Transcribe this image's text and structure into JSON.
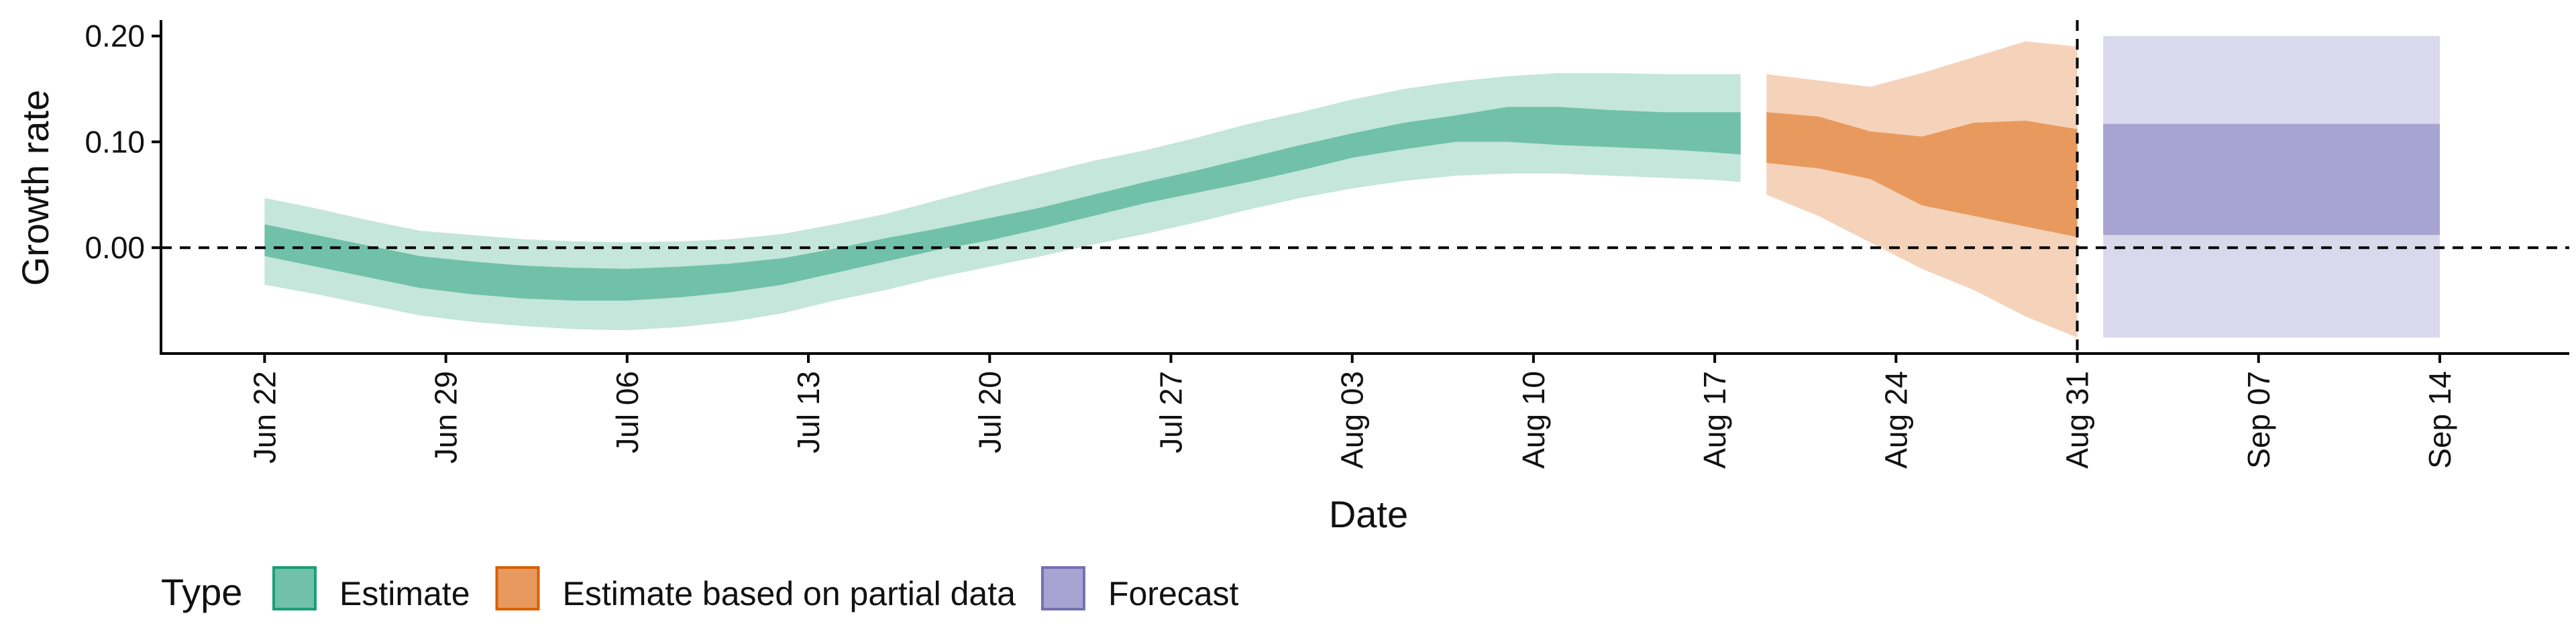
{
  "chart_data": {
    "type": "area",
    "xlabel": "Date",
    "ylabel": "Growth rate",
    "x_range": [
      "2020-06-18",
      "2020-09-19"
    ],
    "ylim": [
      -0.1,
      0.215
    ],
    "y_ticks": [
      {
        "value": 0.0,
        "label": "0.00"
      },
      {
        "value": 0.1,
        "label": "0.10"
      },
      {
        "value": 0.2,
        "label": "0.20"
      }
    ],
    "x_ticks": [
      {
        "date": "2020-06-22",
        "label": "Jun 22"
      },
      {
        "date": "2020-06-29",
        "label": "Jun 29"
      },
      {
        "date": "2020-07-06",
        "label": "Jul 06"
      },
      {
        "date": "2020-07-13",
        "label": "Jul 13"
      },
      {
        "date": "2020-07-20",
        "label": "Jul 20"
      },
      {
        "date": "2020-07-27",
        "label": "Jul 27"
      },
      {
        "date": "2020-08-03",
        "label": "Aug 03"
      },
      {
        "date": "2020-08-10",
        "label": "Aug 10"
      },
      {
        "date": "2020-08-17",
        "label": "Aug 17"
      },
      {
        "date": "2020-08-24",
        "label": "Aug 24"
      },
      {
        "date": "2020-08-31",
        "label": "Aug 31"
      },
      {
        "date": "2020-09-07",
        "label": "Sep 07"
      },
      {
        "date": "2020-09-14",
        "label": "Sep 14"
      }
    ],
    "reference_lines": {
      "horizontal_y": 0.0,
      "vertical_date": "2020-08-31"
    },
    "grid": false,
    "legend": {
      "title": "Type",
      "position": "bottom-left",
      "entries": [
        {
          "label": "Estimate",
          "fill": "#70c1a7",
          "stroke": "#1b9e77"
        },
        {
          "label": "Estimate based on partial data",
          "fill": "#e89a5e",
          "stroke": "#d95f02"
        },
        {
          "label": "Forecast",
          "fill": "#a8a4d1",
          "stroke": "#7570b3"
        }
      ]
    },
    "series": [
      {
        "name": "Estimate",
        "outer_color": "#c5e6da",
        "inner_color": "#70c1a7",
        "dates": [
          "2020-06-22",
          "2020-06-24",
          "2020-06-26",
          "2020-06-28",
          "2020-06-30",
          "2020-07-02",
          "2020-07-04",
          "2020-07-06",
          "2020-07-08",
          "2020-07-10",
          "2020-07-12",
          "2020-07-14",
          "2020-07-16",
          "2020-07-18",
          "2020-07-20",
          "2020-07-22",
          "2020-07-24",
          "2020-07-26",
          "2020-07-28",
          "2020-07-30",
          "2020-08-01",
          "2020-08-03",
          "2020-08-05",
          "2020-08-07",
          "2020-08-09",
          "2020-08-11",
          "2020-08-13",
          "2020-08-15",
          "2020-08-17",
          "2020-08-18"
        ],
        "outer_upper": [
          0.047,
          0.037,
          0.026,
          0.016,
          0.012,
          0.008,
          0.006,
          0.005,
          0.006,
          0.008,
          0.013,
          0.022,
          0.032,
          0.045,
          0.058,
          0.07,
          0.082,
          0.092,
          0.104,
          0.117,
          0.128,
          0.14,
          0.15,
          0.157,
          0.162,
          0.165,
          0.165,
          0.164,
          0.164,
          0.164
        ],
        "inner_upper": [
          0.022,
          0.012,
          0.002,
          -0.008,
          -0.013,
          -0.017,
          -0.019,
          -0.02,
          -0.018,
          -0.015,
          -0.01,
          -0.001,
          0.009,
          0.018,
          0.028,
          0.038,
          0.05,
          0.062,
          0.073,
          0.085,
          0.097,
          0.108,
          0.118,
          0.125,
          0.133,
          0.133,
          0.13,
          0.128,
          0.128,
          0.128
        ],
        "inner_lower": [
          -0.008,
          -0.018,
          -0.028,
          -0.038,
          -0.044,
          -0.048,
          -0.05,
          -0.05,
          -0.047,
          -0.042,
          -0.035,
          -0.024,
          -0.013,
          -0.002,
          0.007,
          0.018,
          0.03,
          0.042,
          0.052,
          0.062,
          0.073,
          0.085,
          0.093,
          0.1,
          0.1,
          0.097,
          0.095,
          0.093,
          0.09,
          0.088
        ],
        "outer_lower": [
          -0.035,
          -0.044,
          -0.054,
          -0.064,
          -0.07,
          -0.074,
          -0.077,
          -0.078,
          -0.075,
          -0.07,
          -0.062,
          -0.05,
          -0.04,
          -0.028,
          -0.018,
          -0.008,
          0.003,
          0.013,
          0.024,
          0.036,
          0.047,
          0.056,
          0.063,
          0.068,
          0.07,
          0.07,
          0.068,
          0.066,
          0.064,
          0.062
        ]
      },
      {
        "name": "Estimate based on partial data",
        "outer_color": "#f5d3bb",
        "inner_color": "#e89a5e",
        "dates": [
          "2020-08-19",
          "2020-08-21",
          "2020-08-23",
          "2020-08-25",
          "2020-08-27",
          "2020-08-29",
          "2020-08-31"
        ],
        "outer_upper": [
          0.164,
          0.158,
          0.152,
          0.165,
          0.18,
          0.195,
          0.19
        ],
        "inner_upper": [
          0.128,
          0.124,
          0.11,
          0.105,
          0.118,
          0.12,
          0.112
        ],
        "inner_lower": [
          0.08,
          0.075,
          0.065,
          0.04,
          0.03,
          0.02,
          0.01
        ],
        "outer_lower": [
          0.05,
          0.03,
          0.005,
          -0.02,
          -0.04,
          -0.065,
          -0.085
        ]
      },
      {
        "name": "Forecast",
        "outer_color": "#d9d8ec",
        "inner_color": "#a8a4d1",
        "dates": [
          "2020-09-01",
          "2020-09-14"
        ],
        "outer_upper": [
          0.2,
          0.2
        ],
        "inner_upper": [
          0.117,
          0.117
        ],
        "inner_lower": [
          0.012,
          0.012
        ],
        "outer_lower": [
          -0.085,
          -0.085
        ]
      }
    ]
  }
}
